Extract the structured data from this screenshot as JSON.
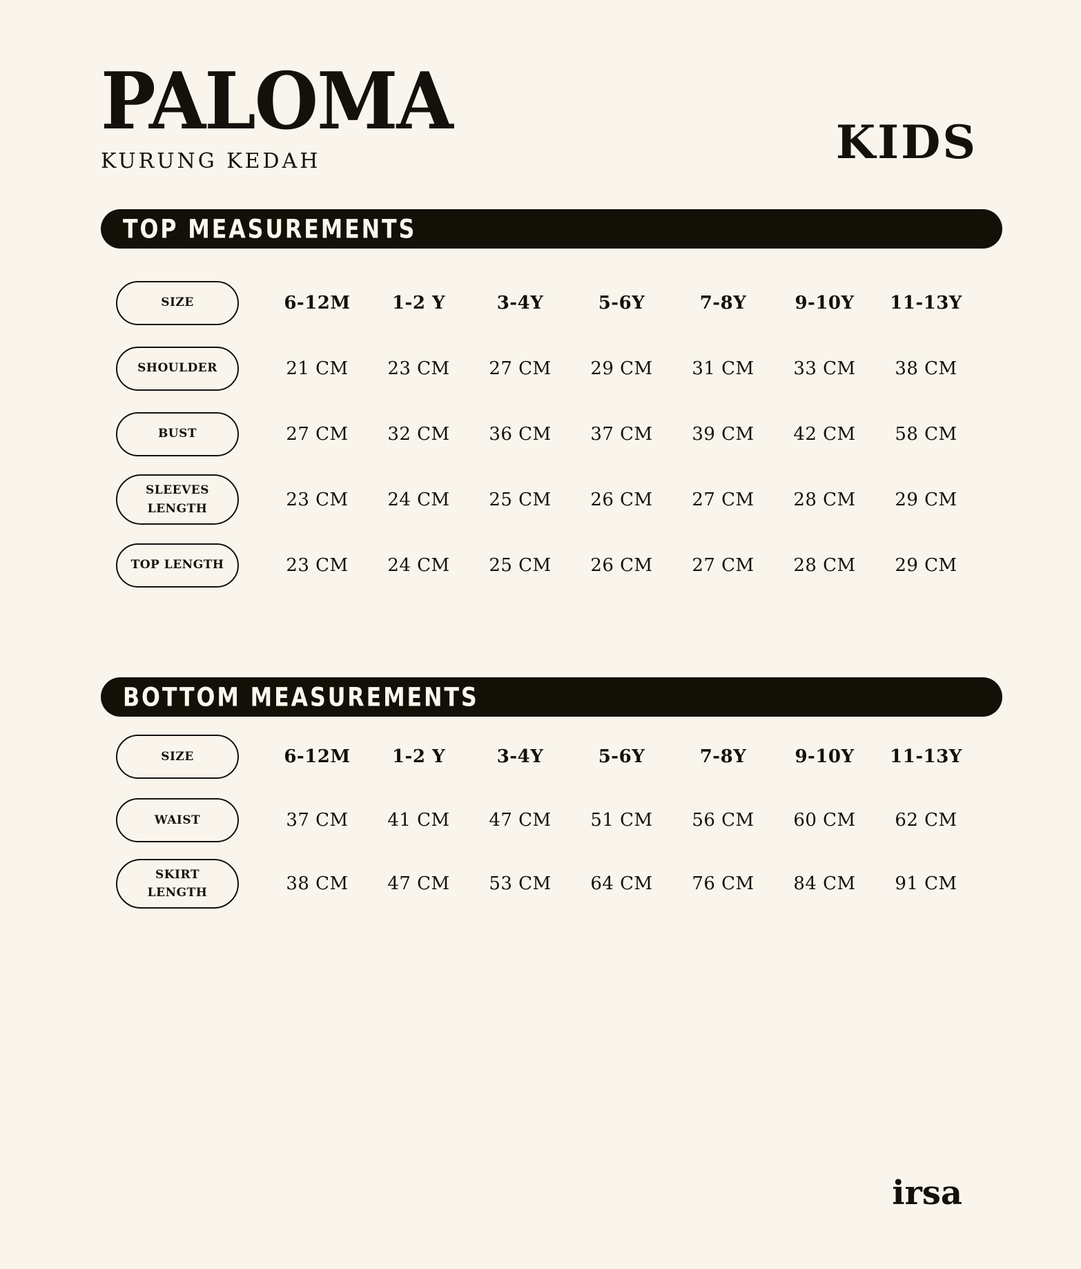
{
  "brand": {
    "logo": "PALOMA",
    "sublogo": "KURUNG KEDAH",
    "collection": "KIDS",
    "footer_logo": "irsa"
  },
  "colors": {
    "background": "#FAF5EC",
    "ink": "#14110D",
    "banner_bg": "#121007",
    "banner_text": "#FBF7EE"
  },
  "top_section": {
    "banner": "TOP MEASUREMENTS",
    "size_label": "SIZE",
    "sizes": [
      "6-12M",
      "1-2 Y",
      "3-4Y",
      "5-6Y",
      "7-8Y",
      "9-10Y",
      "11-13Y"
    ],
    "rows": [
      {
        "label": "SHOULDER",
        "values": [
          "21 CM",
          "23 CM",
          "27 CM",
          "29 CM",
          "31 CM",
          "33 CM",
          "38 CM"
        ]
      },
      {
        "label": "BUST",
        "values": [
          "27 CM",
          "32 CM",
          "36 CM",
          "37 CM",
          "39 CM",
          "42 CM",
          "58 CM"
        ]
      },
      {
        "label": "SLEEVES\nLENGTH",
        "values": [
          "23 CM",
          "24 CM",
          "25 CM",
          "26 CM",
          "27 CM",
          "28 CM",
          "29 CM"
        ]
      },
      {
        "label": "TOP LENGTH",
        "values": [
          "23 CM",
          "24 CM",
          "25 CM",
          "26 CM",
          "27 CM",
          "28 CM",
          "29 CM"
        ]
      }
    ]
  },
  "bottom_section": {
    "banner": "BOTTOM MEASUREMENTS",
    "size_label": "SIZE",
    "sizes": [
      "6-12M",
      "1-2 Y",
      "3-4Y",
      "5-6Y",
      "7-8Y",
      "9-10Y",
      "11-13Y"
    ],
    "rows": [
      {
        "label": "WAIST",
        "values": [
          "37 CM",
          "41 CM",
          "47 CM",
          "51 CM",
          "56 CM",
          "60 CM",
          "62 CM"
        ]
      },
      {
        "label": "SKIRT\nLENGTH",
        "values": [
          "38 CM",
          "47 CM",
          "53 CM",
          "64 CM",
          "76 CM",
          "84 CM",
          "91 CM"
        ]
      }
    ]
  }
}
